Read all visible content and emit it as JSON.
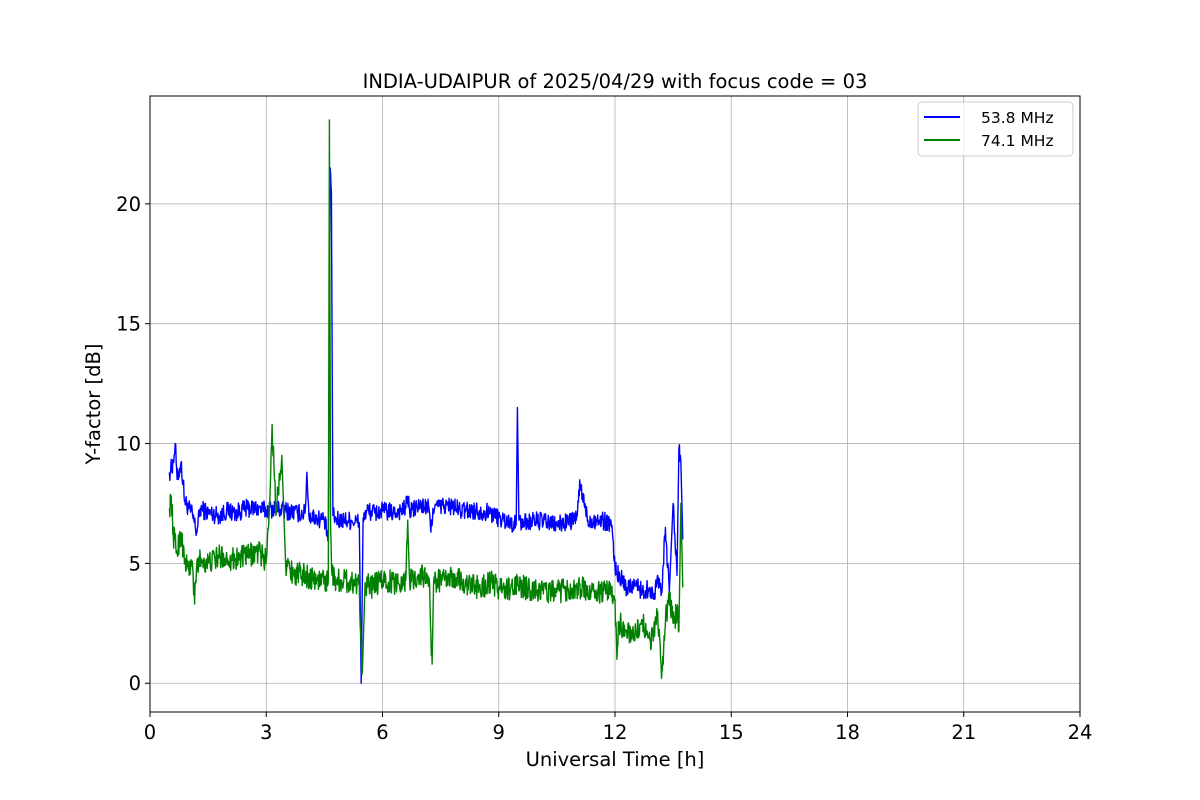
{
  "chart_data": {
    "type": "line",
    "title": "INDIA-UDAIPUR of 2025/04/29 with focus code = 03",
    "xlabel": "Universal Time [h]",
    "ylabel": "Y-factor [dB]",
    "xlim": [
      0,
      24
    ],
    "ylim": [
      -1.2,
      24.5
    ],
    "xticks": [
      0,
      3,
      6,
      9,
      12,
      15,
      18,
      21,
      24
    ],
    "yticks": [
      0,
      5,
      10,
      15,
      20
    ],
    "grid": true,
    "legend_position": "top-right",
    "series": [
      {
        "name": "53.8 MHz",
        "color": "#0000ff",
        "noise": 0.35,
        "x": [
          0.5,
          0.6,
          0.65,
          0.7,
          0.8,
          0.9,
          1.0,
          1.1,
          1.2,
          1.3,
          1.5,
          1.8,
          2.0,
          2.2,
          2.5,
          2.8,
          3.0,
          3.2,
          3.5,
          3.8,
          4.0,
          4.05,
          4.1,
          4.3,
          4.5,
          4.6,
          4.65,
          4.68,
          4.72,
          4.8,
          5.0,
          5.2,
          5.4,
          5.45,
          5.5,
          5.6,
          5.8,
          6.0,
          6.3,
          6.6,
          6.65,
          6.7,
          7.0,
          7.2,
          7.25,
          7.3,
          7.5,
          7.8,
          8.0,
          8.5,
          8.8,
          9.0,
          9.3,
          9.45,
          9.48,
          9.52,
          9.6,
          10.0,
          10.5,
          10.9,
          11.0,
          11.1,
          11.3,
          11.6,
          11.9,
          12.0,
          12.1,
          12.3,
          12.5,
          12.7,
          12.9,
          13.0,
          13.1,
          13.2,
          13.3,
          13.4,
          13.5,
          13.6,
          13.65,
          13.7,
          13.75
        ],
        "y": [
          8.8,
          9.2,
          10.0,
          8.5,
          9.2,
          7.6,
          7.3,
          7.0,
          6.3,
          7.3,
          7.1,
          7.0,
          7.2,
          7.1,
          7.3,
          7.3,
          7.2,
          7.3,
          7.2,
          7.1,
          7.1,
          8.8,
          7.0,
          6.9,
          6.8,
          6.0,
          21.5,
          20.5,
          7.0,
          6.8,
          6.8,
          6.8,
          6.7,
          0.0,
          6.9,
          7.2,
          7.1,
          7.2,
          7.1,
          7.3,
          7.8,
          7.2,
          7.4,
          7.3,
          6.3,
          7.3,
          7.4,
          7.4,
          7.2,
          7.2,
          7.1,
          6.9,
          6.7,
          6.6,
          11.5,
          6.8,
          6.7,
          6.8,
          6.6,
          6.8,
          6.8,
          8.3,
          6.8,
          6.8,
          6.7,
          4.8,
          4.5,
          4.0,
          4.2,
          3.8,
          4.0,
          3.5,
          4.5,
          3.8,
          6.5,
          3.8,
          7.5,
          4.5,
          9.8,
          9.2,
          6.0
        ]
      },
      {
        "name": "74.1 MHz",
        "color": "#008000",
        "noise": 0.45,
        "x": [
          0.5,
          0.55,
          0.6,
          0.7,
          0.8,
          0.9,
          1.0,
          1.1,
          1.15,
          1.2,
          1.3,
          1.5,
          1.8,
          2.0,
          2.2,
          2.5,
          2.8,
          3.0,
          3.1,
          3.15,
          3.2,
          3.25,
          3.3,
          3.4,
          3.5,
          3.7,
          4.0,
          4.3,
          4.5,
          4.6,
          4.63,
          4.66,
          4.7,
          4.8,
          5.0,
          5.2,
          5.4,
          5.45,
          5.48,
          5.55,
          5.7,
          6.0,
          6.3,
          6.6,
          6.65,
          6.7,
          7.0,
          7.2,
          7.25,
          7.28,
          7.32,
          7.4,
          7.6,
          7.9,
          8.2,
          8.5,
          8.8,
          9.0,
          9.3,
          9.5,
          9.8,
          10.0,
          10.5,
          11.0,
          11.5,
          11.9,
          12.0,
          12.05,
          12.1,
          12.3,
          12.5,
          12.7,
          12.9,
          13.0,
          13.1,
          13.2,
          13.3,
          13.4,
          13.5,
          13.6,
          13.65,
          13.7,
          13.75
        ],
        "y": [
          7.3,
          7.8,
          6.2,
          5.5,
          6.3,
          5.0,
          4.8,
          4.9,
          3.3,
          4.8,
          5.2,
          5.0,
          5.3,
          5.2,
          5.2,
          5.3,
          5.5,
          5.1,
          8.0,
          10.8,
          9.0,
          7.0,
          8.0,
          9.5,
          5.0,
          4.6,
          4.5,
          4.3,
          4.3,
          4.3,
          23.5,
          6.5,
          4.5,
          4.3,
          4.3,
          4.2,
          4.2,
          1.5,
          0.5,
          4.2,
          4.0,
          4.3,
          4.2,
          4.3,
          6.8,
          4.3,
          4.5,
          4.4,
          2.0,
          0.8,
          4.2,
          4.3,
          4.3,
          4.4,
          4.1,
          4.0,
          4.2,
          4.0,
          3.9,
          4.1,
          3.9,
          3.9,
          3.8,
          4.0,
          3.8,
          3.8,
          3.5,
          1.0,
          2.5,
          2.2,
          2.0,
          2.5,
          1.8,
          2.2,
          3.0,
          0.2,
          2.5,
          3.8,
          2.5,
          3.0,
          2.2,
          7.5,
          4.0
        ]
      }
    ]
  }
}
